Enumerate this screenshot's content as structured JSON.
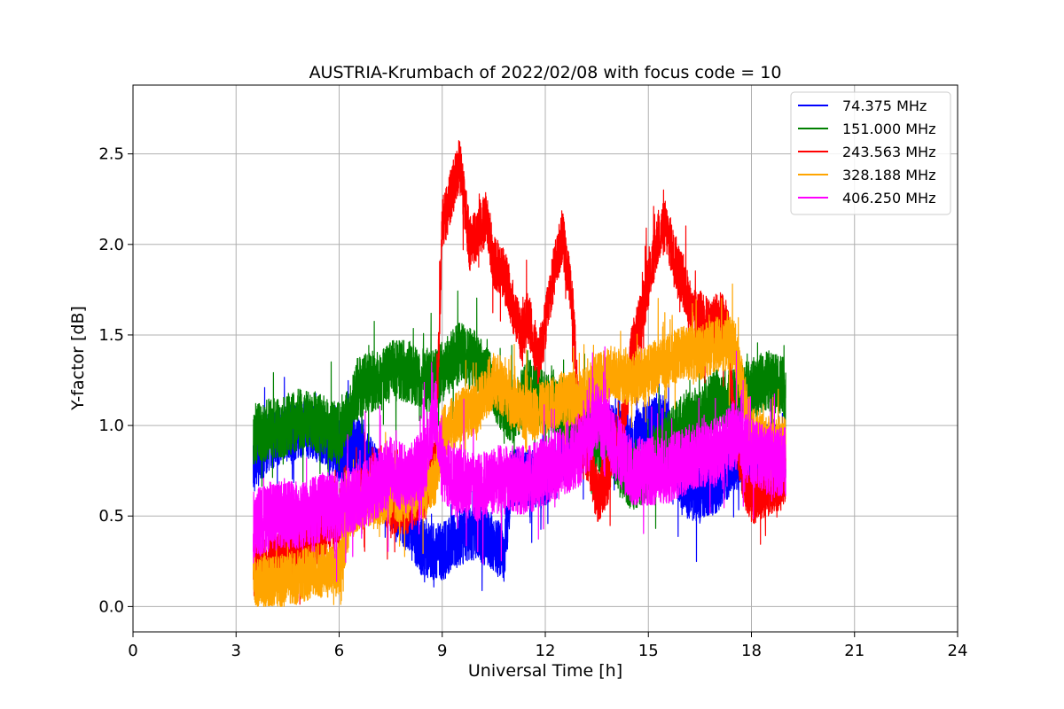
{
  "chart_data": {
    "type": "line",
    "title": "AUSTRIA-Krumbach of 2022/02/08 with focus code = 10",
    "xlabel": "Universal Time [h]",
    "ylabel": "Y-factor [dB]",
    "xlim": [
      0,
      24
    ],
    "ylim": [
      -0.14,
      2.88
    ],
    "xticks": [
      0,
      3,
      6,
      9,
      12,
      15,
      18,
      21,
      24
    ],
    "yticks": [
      0.0,
      0.5,
      1.0,
      1.5,
      2.0,
      2.5
    ],
    "xtick_labels": [
      "0",
      "3",
      "6",
      "9",
      "12",
      "15",
      "18",
      "21",
      "24"
    ],
    "ytick_labels": [
      "0.0",
      "0.5",
      "1.0",
      "1.5",
      "2.0",
      "2.5"
    ],
    "grid": true,
    "legend_position": "top-right",
    "series": [
      {
        "name": " 74.375 MHz",
        "color": "#0000ff",
        "x": [
          3.5,
          4.0,
          4.5,
          5.0,
          5.5,
          6.0,
          6.5,
          7.0,
          7.5,
          8.0,
          8.5,
          9.0,
          9.5,
          10.0,
          10.5,
          10.8,
          11.0,
          11.5,
          12.0,
          12.5,
          13.0,
          13.5,
          14.0,
          14.5,
          15.0,
          15.5,
          16.0,
          16.5,
          17.0,
          17.5,
          18.0,
          18.5,
          19.0
        ],
        "y": [
          0.78,
          0.92,
          0.95,
          0.98,
          0.95,
          0.85,
          0.9,
          0.75,
          0.6,
          0.45,
          0.3,
          0.3,
          0.38,
          0.42,
          0.35,
          0.28,
          0.72,
          0.7,
          0.7,
          0.85,
          0.95,
          0.98,
          0.95,
          0.9,
          1.0,
          1.02,
          0.65,
          0.62,
          0.68,
          0.8,
          0.8,
          0.85,
          0.85
        ]
      },
      {
        "name": "151.000 MHz",
        "color": "#008000",
        "x": [
          3.5,
          4.0,
          4.5,
          5.0,
          5.5,
          6.0,
          6.3,
          6.5,
          7.0,
          7.5,
          8.0,
          8.5,
          9.0,
          9.5,
          10.0,
          10.5,
          11.0,
          11.5,
          12.0,
          12.5,
          13.0,
          13.5,
          14.0,
          14.5,
          15.0,
          15.5,
          16.0,
          16.5,
          17.0,
          17.5,
          18.0,
          18.5,
          19.0
        ],
        "y": [
          0.95,
          0.98,
          1.0,
          1.05,
          1.0,
          0.95,
          1.05,
          1.2,
          1.25,
          1.3,
          1.3,
          1.25,
          1.3,
          1.4,
          1.35,
          1.2,
          1.05,
          1.2,
          1.15,
          1.1,
          1.0,
          0.9,
          0.85,
          0.7,
          0.75,
          0.9,
          1.0,
          1.05,
          1.15,
          1.15,
          1.2,
          1.25,
          1.2
        ]
      },
      {
        "name": "243.563 MHz",
        "color": "#ff0000",
        "x": [
          3.5,
          4.0,
          4.5,
          5.0,
          5.5,
          6.0,
          6.5,
          7.0,
          7.5,
          8.0,
          8.5,
          8.8,
          9.0,
          9.3,
          9.5,
          9.8,
          10.0,
          10.3,
          10.5,
          10.8,
          11.0,
          11.3,
          11.5,
          11.8,
          12.0,
          12.3,
          12.5,
          12.8,
          13.0,
          13.3,
          13.5,
          13.8,
          14.0,
          14.3,
          14.5,
          14.8,
          15.0,
          15.3,
          15.5,
          15.8,
          16.0,
          16.3,
          16.5,
          16.8,
          17.0,
          17.3,
          17.5,
          17.8,
          18.0,
          18.5,
          19.0
        ],
        "y": [
          0.2,
          0.25,
          0.3,
          0.35,
          0.4,
          0.5,
          0.6,
          0.7,
          0.55,
          0.55,
          0.65,
          0.8,
          2.1,
          2.3,
          2.45,
          2.0,
          2.05,
          2.15,
          1.9,
          1.85,
          1.7,
          1.5,
          1.6,
          1.35,
          1.55,
          1.9,
          2.05,
          1.65,
          0.95,
          0.8,
          0.6,
          0.7,
          0.9,
          1.0,
          1.4,
          1.6,
          1.8,
          2.05,
          2.1,
          1.9,
          1.8,
          1.6,
          1.6,
          1.55,
          1.6,
          1.55,
          1.0,
          0.7,
          0.6,
          0.65,
          0.7
        ]
      },
      {
        "name": "328.188 MHz",
        "color": "#ffa500",
        "x": [
          3.5,
          4.0,
          4.5,
          5.0,
          5.5,
          6.0,
          6.3,
          6.5,
          7.0,
          7.5,
          8.0,
          8.5,
          8.8,
          9.0,
          9.5,
          10.0,
          10.5,
          11.0,
          11.5,
          12.0,
          12.5,
          13.0,
          13.5,
          14.0,
          14.5,
          15.0,
          15.5,
          16.0,
          16.5,
          17.0,
          17.5,
          18.0,
          18.5,
          19.0
        ],
        "y": [
          0.15,
          0.12,
          0.15,
          0.18,
          0.2,
          0.2,
          0.5,
          0.55,
          0.6,
          0.6,
          0.62,
          0.65,
          0.7,
          0.95,
          1.05,
          1.1,
          1.25,
          1.15,
          1.05,
          1.1,
          1.15,
          1.15,
          1.25,
          1.3,
          1.25,
          1.3,
          1.35,
          1.4,
          1.4,
          1.45,
          1.45,
          0.95,
          0.9,
          0.9
        ]
      },
      {
        "name": "406.250 MHz",
        "color": "#ff00ff",
        "x": [
          3.5,
          4.0,
          4.5,
          5.0,
          5.5,
          6.0,
          6.5,
          7.0,
          7.5,
          8.0,
          8.5,
          8.8,
          9.0,
          9.5,
          10.0,
          10.5,
          11.0,
          11.5,
          12.0,
          12.5,
          13.0,
          13.5,
          14.0,
          14.5,
          15.0,
          15.5,
          16.0,
          16.5,
          17.0,
          17.5,
          18.0,
          18.5,
          19.0
        ],
        "y": [
          0.45,
          0.5,
          0.5,
          0.5,
          0.55,
          0.55,
          0.6,
          0.65,
          0.75,
          0.7,
          0.8,
          1.1,
          0.75,
          0.7,
          0.65,
          0.7,
          0.7,
          0.7,
          0.75,
          0.8,
          0.85,
          1.05,
          0.9,
          0.75,
          0.75,
          0.75,
          0.8,
          0.85,
          0.85,
          0.95,
          0.85,
          0.8,
          0.8
        ]
      }
    ]
  }
}
